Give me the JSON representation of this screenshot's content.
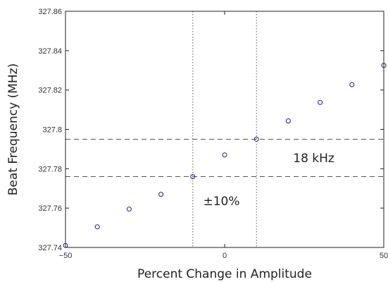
{
  "chart_data": {
    "type": "scatter",
    "title": "",
    "xlabel": "Percent Change in Amplitude",
    "ylabel": "Beat Frequency (MHz)",
    "xlim": [
      -50,
      50
    ],
    "ylim": [
      327.74,
      327.86
    ],
    "xticks": [
      -50,
      0,
      50
    ],
    "xtick_labels": [
      "−50",
      "0",
      "50"
    ],
    "yticks": [
      327.74,
      327.76,
      327.78,
      327.8,
      327.82,
      327.84,
      327.86
    ],
    "ytick_labels": [
      "327.74",
      "327.76",
      "327.78",
      "327.8",
      "327.82",
      "327.84",
      "327.86"
    ],
    "grid": false,
    "x": [
      -50,
      -40,
      -30,
      -20,
      -10,
      0,
      10,
      20,
      30,
      40,
      50
    ],
    "y": [
      327.741,
      327.7505,
      327.7595,
      327.767,
      327.776,
      327.787,
      327.795,
      327.8043,
      327.8137,
      327.8227,
      327.8325
    ],
    "marker_color": "#1a1a8c",
    "reference_lines": {
      "vertical_dotted_x": [
        -10,
        10
      ],
      "horizontal_dashed_y": [
        327.776,
        327.795
      ]
    },
    "annotations": [
      {
        "text": "18 kHz",
        "x": 28,
        "y": 327.7855
      },
      {
        "text": "±10%",
        "x": -1,
        "y": 327.7636
      }
    ]
  }
}
